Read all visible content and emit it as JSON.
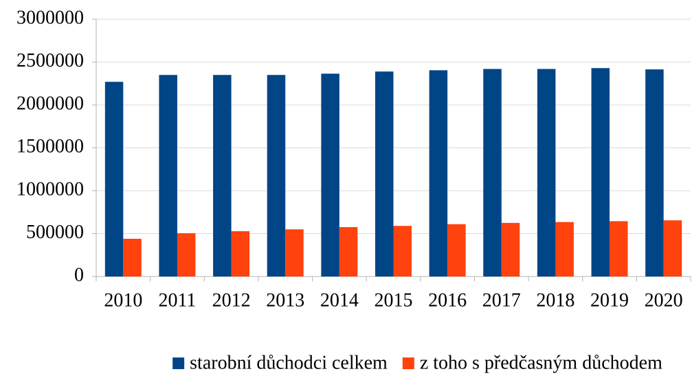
{
  "chart_data": {
    "type": "bar",
    "categories": [
      "2010",
      "2011",
      "2012",
      "2013",
      "2014",
      "2015",
      "2016",
      "2017",
      "2018",
      "2019",
      "2020"
    ],
    "series": [
      {
        "name": "starobní důchodci celkem",
        "color": "#004586",
        "values": [
          2270000,
          2350000,
          2350000,
          2350000,
          2365000,
          2390000,
          2405000,
          2420000,
          2420000,
          2430000,
          2415000
        ]
      },
      {
        "name": "z toho s předčasným důchodem",
        "color": "#ff420e",
        "values": [
          440000,
          505000,
          528000,
          550000,
          576000,
          590000,
          610000,
          625000,
          635000,
          645000,
          655000
        ]
      }
    ],
    "ylim": [
      0,
      3000000
    ],
    "yticks": [
      0,
      500000,
      1000000,
      1500000,
      2000000,
      2500000,
      3000000
    ],
    "grid": true,
    "legend": "bottom"
  }
}
